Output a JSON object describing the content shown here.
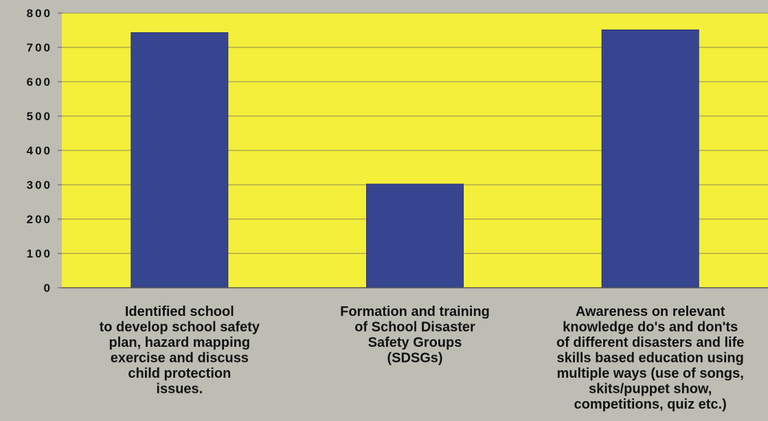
{
  "chart_data": {
    "type": "bar",
    "title": "",
    "xlabel": "",
    "ylabel": "",
    "ylim": [
      0,
      800
    ],
    "yticks": [
      "0",
      "100",
      "200",
      "300",
      "400",
      "500",
      "600",
      "700",
      "800"
    ],
    "grid": true,
    "categories": [
      [
        "Identified school",
        "to develop school safety",
        "plan, hazard mapping",
        "exercise and discuss",
        "child protection",
        "issues."
      ],
      [
        "Formation and training",
        "of School Disaster",
        "Safety Groups",
        "(SDSGs)"
      ],
      [
        "Awareness on relevant",
        "knowledge do's and don'ts",
        "of different disasters and life",
        "skills based education using",
        "multiple ways (use of songs,",
        "skits/puppet show,",
        "competitions, quiz etc.)"
      ]
    ],
    "values": [
      743,
      302,
      751
    ],
    "colors": {
      "plot_background": "#f4ef3a",
      "bar": "#36458f",
      "page_background": "#bdbdb4",
      "gridline": "#8a8a55"
    }
  }
}
